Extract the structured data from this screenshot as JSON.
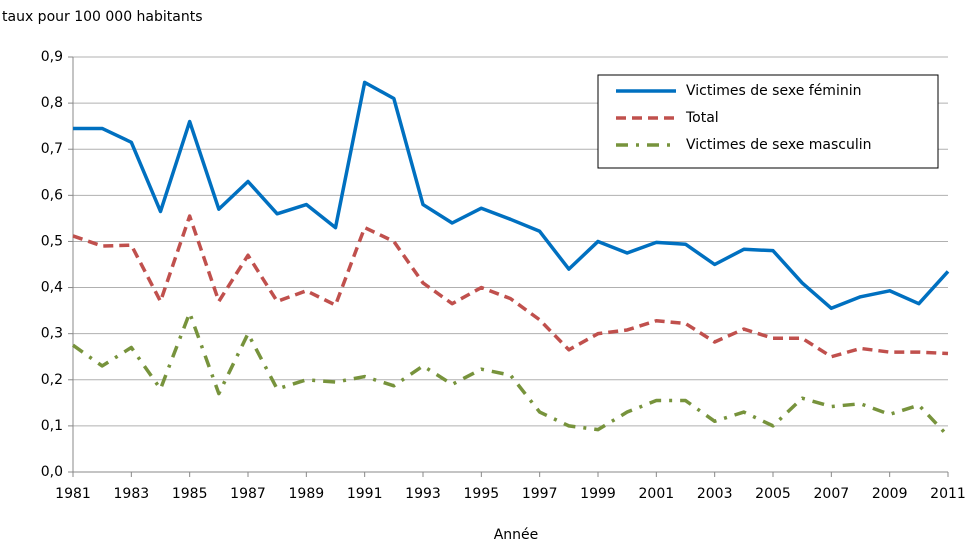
{
  "chart_data": {
    "type": "line",
    "subtitle": "taux pour 100 000 habitants",
    "xlabel": "Année",
    "x": [
      1981,
      1982,
      1983,
      1984,
      1985,
      1986,
      1987,
      1988,
      1989,
      1990,
      1991,
      1992,
      1993,
      1994,
      1995,
      1996,
      1997,
      1998,
      1999,
      2000,
      2001,
      2002,
      2003,
      2004,
      2005,
      2006,
      2007,
      2008,
      2009,
      2010,
      2011
    ],
    "series": [
      {
        "name": "Victimes de sexe féminin",
        "color": "#0070c0",
        "style": "solid",
        "values": [
          0.745,
          0.745,
          0.715,
          0.565,
          0.76,
          0.57,
          0.63,
          0.56,
          0.58,
          0.53,
          0.845,
          0.81,
          0.58,
          0.54,
          0.572,
          0.548,
          0.522,
          0.44,
          0.5,
          0.475,
          0.498,
          0.494,
          0.45,
          0.483,
          0.48,
          0.41,
          0.355,
          0.38,
          0.393,
          0.365,
          0.435
        ]
      },
      {
        "name": "Total",
        "color": "#c0504d",
        "style": "dashed",
        "values": [
          0.512,
          0.49,
          0.492,
          0.37,
          0.555,
          0.37,
          0.47,
          0.37,
          0.393,
          0.362,
          0.53,
          0.5,
          0.41,
          0.365,
          0.4,
          0.376,
          0.33,
          0.265,
          0.3,
          0.308,
          0.328,
          0.322,
          0.282,
          0.31,
          0.29,
          0.29,
          0.25,
          0.268,
          0.26,
          0.26,
          0.257
        ]
      },
      {
        "name": "Victimes de sexe masculin",
        "color": "#77933c",
        "style": "dashdot",
        "values": [
          0.275,
          0.23,
          0.27,
          0.18,
          0.345,
          0.17,
          0.3,
          0.18,
          0.2,
          0.195,
          0.207,
          0.187,
          0.23,
          0.19,
          0.223,
          0.21,
          0.13,
          0.1,
          0.092,
          0.13,
          0.155,
          0.155,
          0.11,
          0.13,
          0.1,
          0.16,
          0.142,
          0.148,
          0.125,
          0.145,
          0.078
        ]
      }
    ],
    "xlim": [
      1981,
      2011
    ],
    "xticks": [
      1981,
      1983,
      1985,
      1987,
      1989,
      1991,
      1993,
      1995,
      1997,
      1999,
      2001,
      2003,
      2005,
      2007,
      2009,
      2011
    ],
    "ylim": [
      0,
      0.9
    ],
    "yticks": [
      {
        "value": 0,
        "label": "0,0"
      },
      {
        "value": 0.1,
        "label": "0,1"
      },
      {
        "value": 0.2,
        "label": "0,2"
      },
      {
        "value": 0.3,
        "label": "0,3"
      },
      {
        "value": 0.4,
        "label": "0,4"
      },
      {
        "value": 0.5,
        "label": "0,5"
      },
      {
        "value": 0.6,
        "label": "0,6"
      },
      {
        "value": 0.7,
        "label": "0,7"
      },
      {
        "value": 0.8,
        "label": "0,8"
      },
      {
        "value": 0.9,
        "label": "0,9"
      }
    ],
    "grid": true,
    "legend": "upper right"
  }
}
